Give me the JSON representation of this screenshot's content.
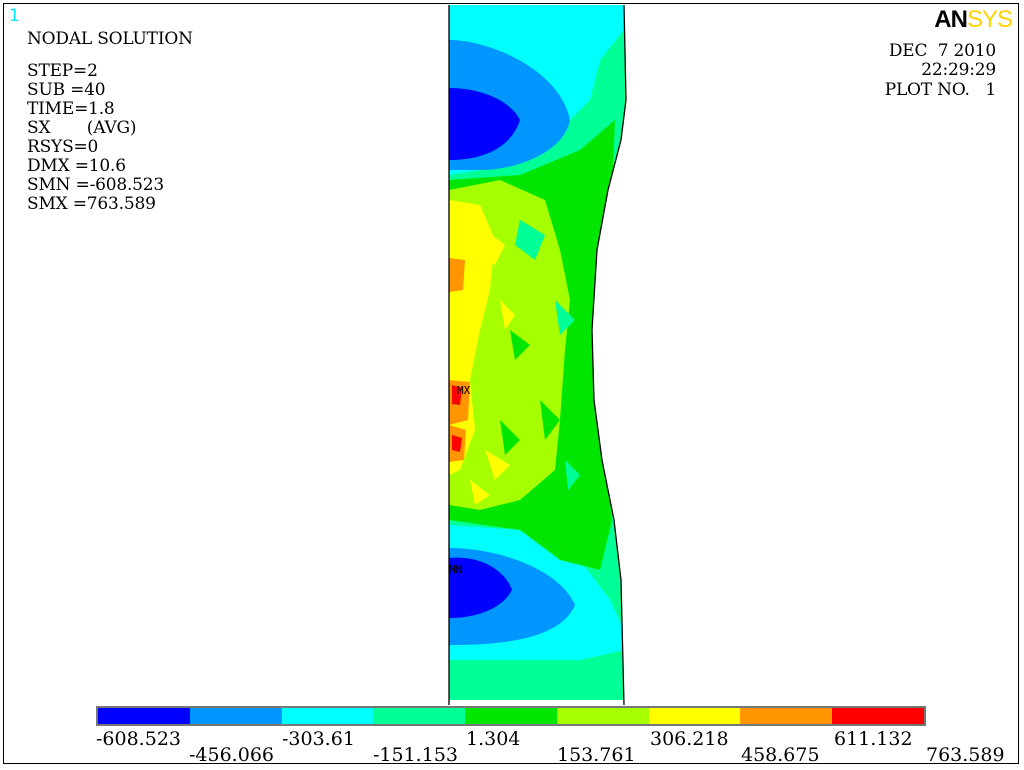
{
  "window_number": "1",
  "logo": {
    "part1": "AN",
    "part2": "SYS"
  },
  "left_info": {
    "title": "NODAL SOLUTION",
    "lines": [
      "STEP=2",
      "SUB =40",
      "TIME=1.8",
      "SX       (AVG)",
      "RSYS=0",
      "DMX =10.6",
      "SMN =-608.523",
      "SMX =763.589"
    ]
  },
  "right_info": {
    "date": "DEC  7 2010",
    "time": "22:29:29",
    "plot_no": "PLOT NO.   1"
  },
  "markers": {
    "max": "MX",
    "min": "MN"
  },
  "legend": {
    "colors": [
      "#0000ff",
      "#0096ff",
      "#00ffff",
      "#00ff96",
      "#00e600",
      "#a6ff00",
      "#ffff00",
      "#ff9600",
      "#ff0000"
    ],
    "top_labels": [
      "-608.523",
      "-303.61",
      "1.304",
      "306.218",
      "611.132"
    ],
    "bottom_labels": [
      "-456.066",
      "-151.153",
      "153.761",
      "458.675",
      "763.589"
    ]
  }
}
